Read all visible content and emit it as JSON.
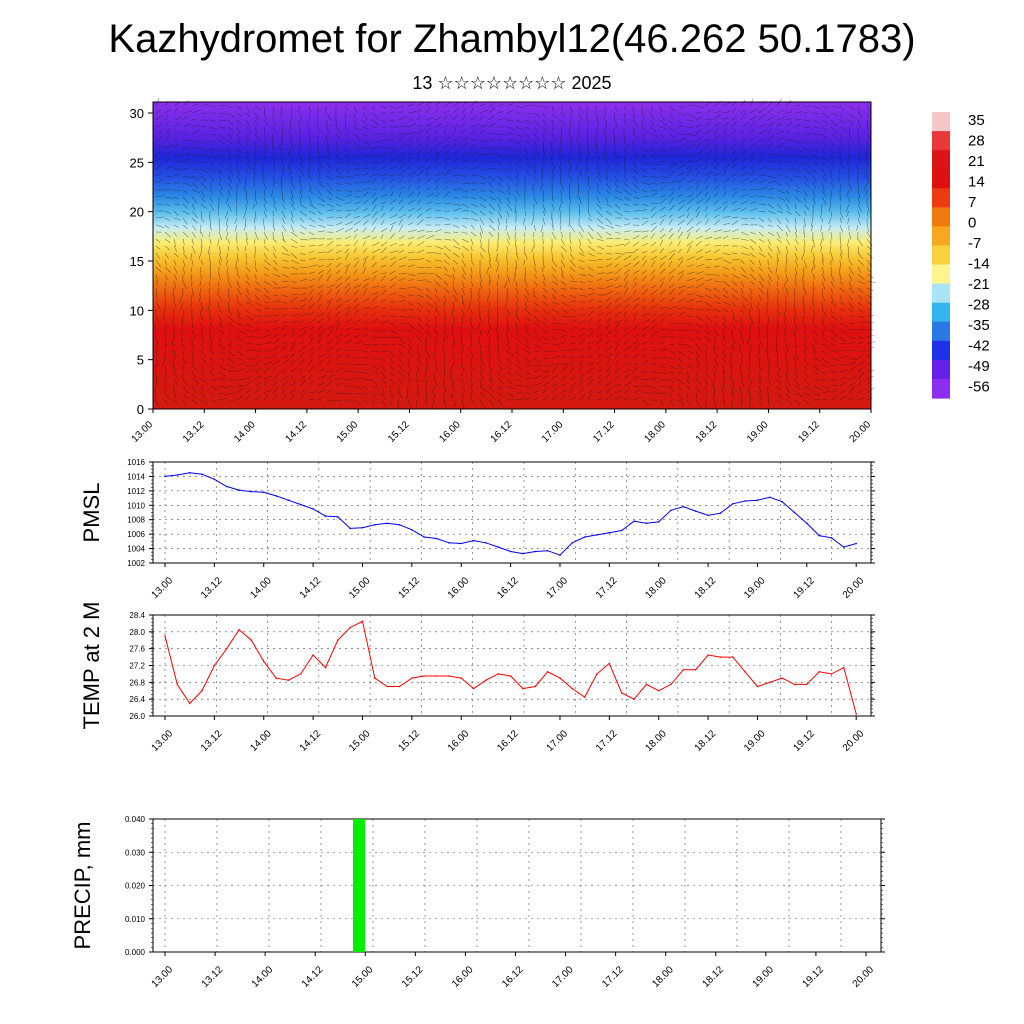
{
  "title": "Kazhydromet for Zhambyl12(46.262 50.1783)",
  "subtitle": "13 ☆☆☆☆☆☆☆☆ 2025",
  "time_ticks": [
    "13.00",
    "13.12",
    "14.00",
    "14.12",
    "15.00",
    "15.12",
    "16.00",
    "16.12",
    "17.00",
    "17.12",
    "18.00",
    "18.12",
    "19.00",
    "19.12",
    "20.00"
  ],
  "chart_data": [
    {
      "type": "heatmap",
      "name": "temperature_cross_section",
      "x_ticks": [
        "13.00",
        "13.12",
        "14.00",
        "14.12",
        "15.00",
        "15.12",
        "16.00",
        "16.12",
        "17.00",
        "17.12",
        "18.00",
        "18.12",
        "19.00",
        "19.12",
        "20.00"
      ],
      "ylim": [
        0,
        30
      ],
      "y_ticks": [
        0,
        5,
        10,
        15,
        20,
        25,
        30
      ],
      "colorbar_labels": [
        "35",
        "28",
        "21",
        "14",
        "7",
        "0",
        "-7",
        "-14",
        "-21",
        "-28",
        "-35",
        "-42",
        "-49",
        "-56"
      ],
      "colorbar_colors": [
        "#f4c8c8",
        "#e8383a",
        "#dc1418",
        "#e01010",
        "#ee3a10",
        "#f07a10",
        "#f7a820",
        "#f9d040",
        "#fff590",
        "#a8e4f4",
        "#36b4f0",
        "#2a78e4",
        "#2032e8",
        "#6420e8",
        "#8a2ef0"
      ],
      "profile": [
        {
          "h": 0,
          "color": "#d41a10"
        },
        {
          "h": 8,
          "color": "#e01010"
        },
        {
          "h": 10,
          "color": "#e8320c"
        },
        {
          "h": 12,
          "color": "#f06a10"
        },
        {
          "h": 13.5,
          "color": "#f49a18"
        },
        {
          "h": 15,
          "color": "#f8c430"
        },
        {
          "h": 16.5,
          "color": "#fcec70"
        },
        {
          "h": 18,
          "color": "#c8ecf4"
        },
        {
          "h": 19.5,
          "color": "#5ec0ee"
        },
        {
          "h": 21,
          "color": "#2c8ce6"
        },
        {
          "h": 23,
          "color": "#2450e4"
        },
        {
          "h": 25,
          "color": "#1e26d8"
        },
        {
          "h": 27,
          "color": "#5a22e2"
        },
        {
          "h": 30.5,
          "color": "#8c30ee"
        }
      ]
    },
    {
      "type": "line",
      "name": "pmsl",
      "ylabel": "PMSL",
      "ylim": [
        1002,
        1016
      ],
      "y_ticks": [
        1002,
        1004,
        1006,
        1008,
        1010,
        1012,
        1014,
        1016
      ],
      "color": "#0000ff",
      "x": [
        0,
        3,
        6,
        9,
        12,
        15,
        18,
        21,
        24,
        27,
        30,
        33,
        36,
        39,
        42,
        45,
        48,
        51,
        54,
        57,
        60,
        63,
        66,
        69,
        72,
        75,
        78,
        81,
        84,
        87,
        90,
        93,
        96,
        99,
        102,
        105,
        108,
        111,
        114,
        117,
        120,
        123,
        126,
        129,
        132,
        135,
        138,
        141,
        144,
        147,
        150,
        153,
        156,
        159,
        162,
        165,
        168
      ],
      "values": [
        1014.0,
        1014.2,
        1014.5,
        1014.3,
        1013.6,
        1012.6,
        1012.1,
        1011.9,
        1011.8,
        1011.3,
        1010.7,
        1010.1,
        1009.5,
        1008.5,
        1008.4,
        1006.8,
        1006.9,
        1007.3,
        1007.5,
        1007.3,
        1006.6,
        1005.6,
        1005.4,
        1004.8,
        1004.7,
        1005.1,
        1004.8,
        1004.2,
        1003.6,
        1003.3,
        1003.6,
        1003.7,
        1003.1,
        1004.8,
        1005.6,
        1005.9,
        1006.2,
        1006.5,
        1007.8,
        1007.5,
        1007.7,
        1009.3,
        1009.8,
        1009.2,
        1008.6,
        1008.9,
        1010.2,
        1010.6,
        1010.7,
        1011.1,
        1010.5,
        1009.0,
        1007.5,
        1005.8,
        1005.5,
        1004.2,
        1004.7
      ]
    },
    {
      "type": "line",
      "name": "temp_2m",
      "ylabel": "TEMP at 2 M",
      "ylim": [
        26.0,
        28.4
      ],
      "y_ticks": [
        "26.0",
        "26.4",
        "26.8",
        "27.2",
        "27.6",
        "28.0",
        "28.4"
      ],
      "color": "#ff0000",
      "x": [
        0,
        3,
        6,
        9,
        12,
        15,
        18,
        21,
        24,
        27,
        30,
        33,
        36,
        39,
        42,
        45,
        48,
        51,
        54,
        57,
        60,
        63,
        66,
        69,
        72,
        75,
        78,
        81,
        84,
        87,
        90,
        93,
        96,
        99,
        102,
        105,
        108,
        111,
        114,
        117,
        120,
        123,
        126,
        129,
        132,
        135,
        138,
        141,
        144,
        147,
        150,
        153,
        156,
        159,
        162,
        165,
        168
      ],
      "values": [
        27.9,
        26.75,
        26.3,
        26.6,
        27.2,
        27.6,
        28.05,
        27.8,
        27.3,
        26.9,
        26.85,
        27.0,
        27.45,
        27.15,
        27.8,
        28.1,
        28.25,
        26.9,
        26.7,
        26.7,
        26.9,
        26.95,
        26.95,
        26.95,
        26.9,
        26.65,
        26.85,
        27.0,
        26.95,
        26.65,
        26.7,
        27.05,
        26.9,
        26.65,
        26.45,
        27.0,
        27.25,
        26.55,
        26.4,
        26.75,
        26.6,
        26.75,
        27.1,
        27.1,
        27.45,
        27.4,
        27.4,
        27.05,
        26.7,
        26.8,
        26.9,
        26.75,
        26.75,
        27.05,
        27.0,
        27.15,
        26.05
      ]
    },
    {
      "type": "bar",
      "name": "precip",
      "ylabel": "PRECIP, mm",
      "ylim": [
        0,
        0.04
      ],
      "y_ticks": [
        "0.000",
        "0.010",
        "0.020",
        "0.030",
        "0.040"
      ],
      "color": "#00ee00",
      "x": [
        46.5
      ],
      "values": [
        0.04
      ]
    }
  ]
}
